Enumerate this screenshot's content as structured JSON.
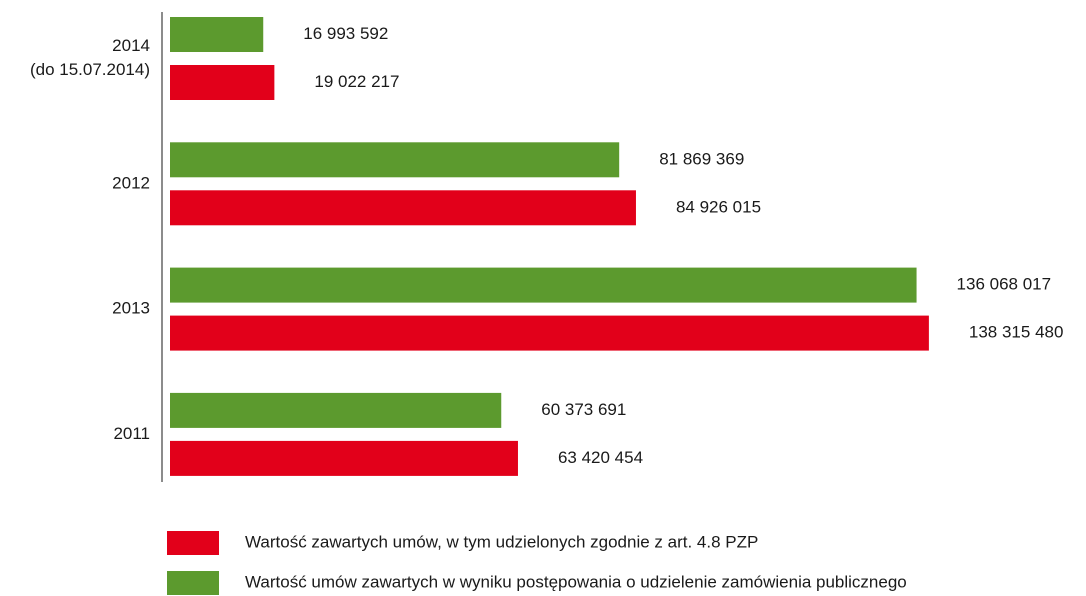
{
  "chart_data": {
    "type": "barh",
    "categories": [
      [
        "2014",
        "(do 15.07.2014)"
      ],
      "2012",
      "2013",
      "2011"
    ],
    "series": [
      {
        "name": "Wartość umów zawartych w wyniku postępowania o udzielenie zamówienia publicznego",
        "color": "#5c9a2e",
        "values": [
          16993592,
          81869369,
          136068017,
          60373691
        ],
        "value_labels": [
          "16 993 592",
          "81 869 369",
          "136 068 017",
          "60 373 691"
        ]
      },
      {
        "name": "Wartość zawartych umów, w tym udzielonych zgodnie z art. 4.8 PZP",
        "color": "#e2001a",
        "values": [
          19022217,
          84926015,
          138315480,
          63420454
        ],
        "value_labels": [
          "19 022 217",
          "84 926 015",
          "138 315 480",
          "63 420 454"
        ]
      }
    ],
    "xlim": [
      0,
      150000000
    ]
  }
}
